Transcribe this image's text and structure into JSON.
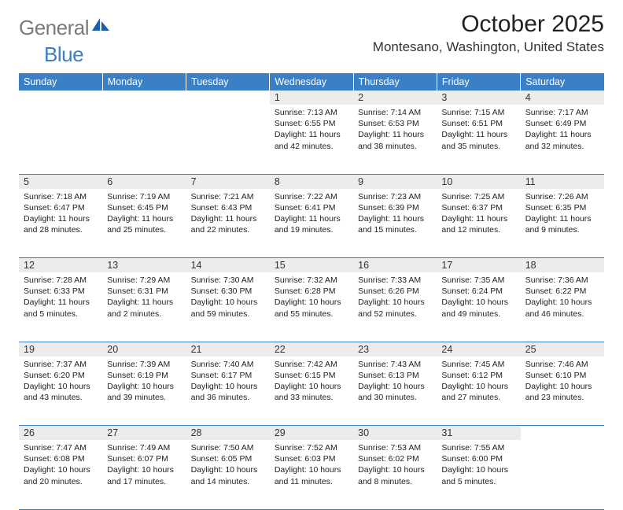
{
  "logo": {
    "text1": "General",
    "text2": "Blue",
    "icon_color": "#1c5fa6"
  },
  "title": "October 2025",
  "location": "Montesano, Washington, United States",
  "header_bg": "#3b7fc4",
  "header_text_color": "#ffffff",
  "daynum_bg": "#ececec",
  "divider_color": "#3b7fc4",
  "weekdays": [
    "Sunday",
    "Monday",
    "Tuesday",
    "Wednesday",
    "Thursday",
    "Friday",
    "Saturday"
  ],
  "weeks": [
    {
      "days": [
        {
          "n": "",
          "text": ""
        },
        {
          "n": "",
          "text": ""
        },
        {
          "n": "",
          "text": ""
        },
        {
          "n": "1",
          "text": "Sunrise: 7:13 AM\nSunset: 6:55 PM\nDaylight: 11 hours and 42 minutes."
        },
        {
          "n": "2",
          "text": "Sunrise: 7:14 AM\nSunset: 6:53 PM\nDaylight: 11 hours and 38 minutes."
        },
        {
          "n": "3",
          "text": "Sunrise: 7:15 AM\nSunset: 6:51 PM\nDaylight: 11 hours and 35 minutes."
        },
        {
          "n": "4",
          "text": "Sunrise: 7:17 AM\nSunset: 6:49 PM\nDaylight: 11 hours and 32 minutes."
        }
      ]
    },
    {
      "days": [
        {
          "n": "5",
          "text": "Sunrise: 7:18 AM\nSunset: 6:47 PM\nDaylight: 11 hours and 28 minutes."
        },
        {
          "n": "6",
          "text": "Sunrise: 7:19 AM\nSunset: 6:45 PM\nDaylight: 11 hours and 25 minutes."
        },
        {
          "n": "7",
          "text": "Sunrise: 7:21 AM\nSunset: 6:43 PM\nDaylight: 11 hours and 22 minutes."
        },
        {
          "n": "8",
          "text": "Sunrise: 7:22 AM\nSunset: 6:41 PM\nDaylight: 11 hours and 19 minutes."
        },
        {
          "n": "9",
          "text": "Sunrise: 7:23 AM\nSunset: 6:39 PM\nDaylight: 11 hours and 15 minutes."
        },
        {
          "n": "10",
          "text": "Sunrise: 7:25 AM\nSunset: 6:37 PM\nDaylight: 11 hours and 12 minutes."
        },
        {
          "n": "11",
          "text": "Sunrise: 7:26 AM\nSunset: 6:35 PM\nDaylight: 11 hours and 9 minutes."
        }
      ]
    },
    {
      "days": [
        {
          "n": "12",
          "text": "Sunrise: 7:28 AM\nSunset: 6:33 PM\nDaylight: 11 hours and 5 minutes."
        },
        {
          "n": "13",
          "text": "Sunrise: 7:29 AM\nSunset: 6:31 PM\nDaylight: 11 hours and 2 minutes."
        },
        {
          "n": "14",
          "text": "Sunrise: 7:30 AM\nSunset: 6:30 PM\nDaylight: 10 hours and 59 minutes."
        },
        {
          "n": "15",
          "text": "Sunrise: 7:32 AM\nSunset: 6:28 PM\nDaylight: 10 hours and 55 minutes."
        },
        {
          "n": "16",
          "text": "Sunrise: 7:33 AM\nSunset: 6:26 PM\nDaylight: 10 hours and 52 minutes."
        },
        {
          "n": "17",
          "text": "Sunrise: 7:35 AM\nSunset: 6:24 PM\nDaylight: 10 hours and 49 minutes."
        },
        {
          "n": "18",
          "text": "Sunrise: 7:36 AM\nSunset: 6:22 PM\nDaylight: 10 hours and 46 minutes."
        }
      ]
    },
    {
      "days": [
        {
          "n": "19",
          "text": "Sunrise: 7:37 AM\nSunset: 6:20 PM\nDaylight: 10 hours and 43 minutes."
        },
        {
          "n": "20",
          "text": "Sunrise: 7:39 AM\nSunset: 6:19 PM\nDaylight: 10 hours and 39 minutes."
        },
        {
          "n": "21",
          "text": "Sunrise: 7:40 AM\nSunset: 6:17 PM\nDaylight: 10 hours and 36 minutes."
        },
        {
          "n": "22",
          "text": "Sunrise: 7:42 AM\nSunset: 6:15 PM\nDaylight: 10 hours and 33 minutes."
        },
        {
          "n": "23",
          "text": "Sunrise: 7:43 AM\nSunset: 6:13 PM\nDaylight: 10 hours and 30 minutes."
        },
        {
          "n": "24",
          "text": "Sunrise: 7:45 AM\nSunset: 6:12 PM\nDaylight: 10 hours and 27 minutes."
        },
        {
          "n": "25",
          "text": "Sunrise: 7:46 AM\nSunset: 6:10 PM\nDaylight: 10 hours and 23 minutes."
        }
      ]
    },
    {
      "days": [
        {
          "n": "26",
          "text": "Sunrise: 7:47 AM\nSunset: 6:08 PM\nDaylight: 10 hours and 20 minutes."
        },
        {
          "n": "27",
          "text": "Sunrise: 7:49 AM\nSunset: 6:07 PM\nDaylight: 10 hours and 17 minutes."
        },
        {
          "n": "28",
          "text": "Sunrise: 7:50 AM\nSunset: 6:05 PM\nDaylight: 10 hours and 14 minutes."
        },
        {
          "n": "29",
          "text": "Sunrise: 7:52 AM\nSunset: 6:03 PM\nDaylight: 10 hours and 11 minutes."
        },
        {
          "n": "30",
          "text": "Sunrise: 7:53 AM\nSunset: 6:02 PM\nDaylight: 10 hours and 8 minutes."
        },
        {
          "n": "31",
          "text": "Sunrise: 7:55 AM\nSunset: 6:00 PM\nDaylight: 10 hours and 5 minutes."
        },
        {
          "n": "",
          "text": ""
        }
      ]
    }
  ]
}
